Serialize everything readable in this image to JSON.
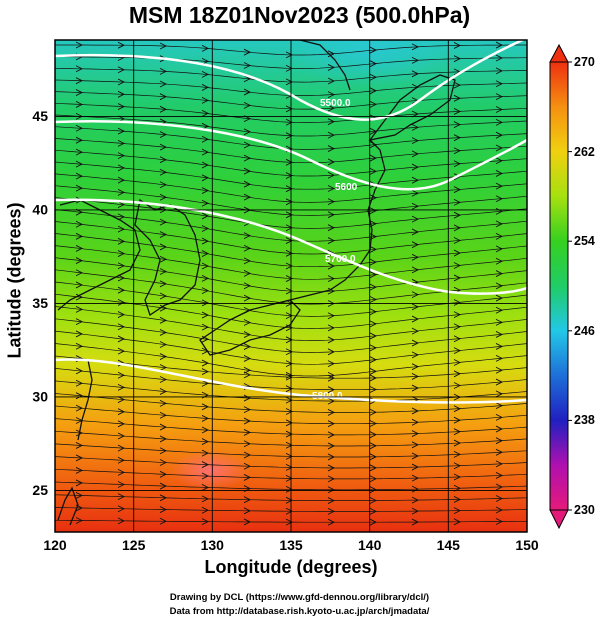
{
  "title": "MSM 18Z01Nov2023 (500.0hPa)",
  "map": {
    "xlabel": "Longitude (degrees)",
    "ylabel": "Latitude  (degrees)",
    "lon_range": [
      120,
      150
    ],
    "lat_range": [
      22.5,
      48
    ],
    "lon_ticks": [
      "120",
      "125",
      "130",
      "135",
      "140",
      "145",
      "150"
    ],
    "lat_ticks": [
      "25",
      "30",
      "35",
      "40",
      "45"
    ],
    "contours": [
      {
        "label": "5500.0"
      },
      {
        "label": "5600"
      },
      {
        "label": "5700.0"
      },
      {
        "label": "5800.0"
      }
    ]
  },
  "colorbar": {
    "min": 230,
    "max": 270,
    "ticks": [
      "270",
      "262",
      "254",
      "246",
      "238",
      "230"
    ],
    "colors": [
      "#e41a7a",
      "#b010b0",
      "#2020c0",
      "#1e6fd8",
      "#22c8e6",
      "#20cc66",
      "#36d020",
      "#a6e010",
      "#f0d010",
      "#f59010",
      "#ee3010"
    ]
  },
  "footer": {
    "credit1": "Drawing by DCL (https://www.gfd-dennou.org/library/dcl/)",
    "credit2": "Data from http://database.rish.kyoto-u.ac.jp/arch/jmadata/"
  }
}
